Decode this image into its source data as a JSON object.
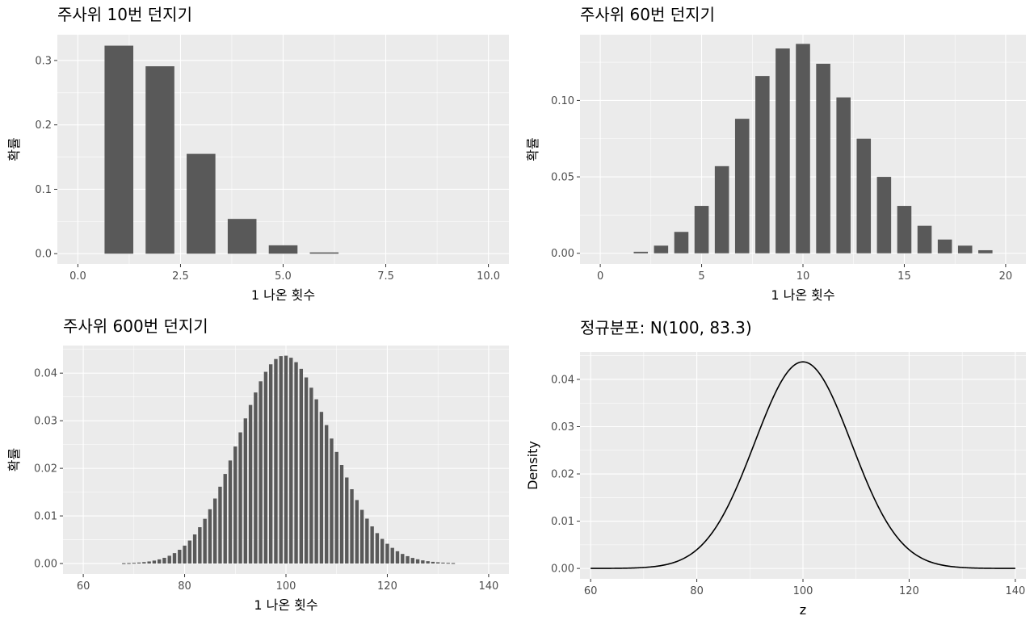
{
  "chart_data": [
    {
      "type": "bar",
      "title": "주사위 10번 던지기",
      "xlabel": "1 나온 횟수",
      "ylabel": "확률",
      "xlim": [
        -0.5,
        10.5
      ],
      "ylim": [
        -0.016,
        0.34
      ],
      "xticks": [
        0,
        2.5,
        5,
        7.5,
        10
      ],
      "xtick_labels": [
        "0.0",
        "2.5",
        "5.0",
        "7.5",
        "10.0"
      ],
      "yticks": [
        0,
        0.1,
        0.2,
        0.3
      ],
      "ytick_labels": [
        "0.0",
        "0.1",
        "0.2",
        "0.3"
      ],
      "bar_width": 0.7,
      "x": [
        0,
        1,
        2,
        3,
        4,
        5,
        6,
        7,
        8,
        9,
        10
      ],
      "values": [
        0.0,
        0.323,
        0.291,
        0.155,
        0.054,
        0.013,
        0.002,
        0.0,
        0.0,
        0.0,
        0.0
      ]
    },
    {
      "type": "bar",
      "title": "주사위 60번 던지기",
      "xlabel": "1 나온 횟수",
      "ylabel": "확률",
      "xlim": [
        -1,
        21
      ],
      "ylim": [
        -0.007,
        0.143
      ],
      "xticks": [
        0,
        5,
        10,
        15,
        20
      ],
      "xtick_labels": [
        "0",
        "5",
        "10",
        "15",
        "20"
      ],
      "yticks": [
        0,
        0.05,
        0.1
      ],
      "ytick_labels": [
        "0.00",
        "0.05",
        "0.10"
      ],
      "bar_width": 0.7,
      "x": [
        0,
        1,
        2,
        3,
        4,
        5,
        6,
        7,
        8,
        9,
        10,
        11,
        12,
        13,
        14,
        15,
        16,
        17,
        18,
        19,
        20
      ],
      "values": [
        0.0,
        0.0,
        0.001,
        0.005,
        0.014,
        0.031,
        0.057,
        0.088,
        0.116,
        0.134,
        0.137,
        0.124,
        0.102,
        0.075,
        0.05,
        0.031,
        0.018,
        0.009,
        0.005,
        0.002,
        0.0
      ]
    },
    {
      "type": "bar",
      "title": "주사위 600번 던지기",
      "xlabel": "1 나온 횟수",
      "ylabel": "확률",
      "xlim": [
        56,
        144
      ],
      "ylim": [
        -0.0022,
        0.0458
      ],
      "xticks": [
        60,
        80,
        100,
        120,
        140
      ],
      "xtick_labels": [
        "60",
        "80",
        "100",
        "120",
        "140"
      ],
      "yticks": [
        0,
        0.01,
        0.02,
        0.03,
        0.04
      ],
      "ytick_labels": [
        "0.00",
        "0.01",
        "0.02",
        "0.03",
        "0.04"
      ],
      "bar_width": 0.7,
      "x_start": 68,
      "x_end": 133,
      "distribution": {
        "name": "binomial",
        "n": 600,
        "p": 0.16667
      }
    },
    {
      "type": "line",
      "title": "정규분포: N(100, 83.3)",
      "xlabel": "z",
      "ylabel": "Density",
      "xlim": [
        58,
        142
      ],
      "ylim": [
        -0.0022,
        0.0458
      ],
      "xticks": [
        60,
        80,
        100,
        120,
        140
      ],
      "xtick_labels": [
        "60",
        "80",
        "100",
        "120",
        "140"
      ],
      "yticks": [
        0,
        0.01,
        0.02,
        0.03,
        0.04
      ],
      "ytick_labels": [
        "0.00",
        "0.01",
        "0.02",
        "0.03",
        "0.04"
      ],
      "distribution": {
        "name": "normal",
        "mean": 100,
        "variance": 83.3
      },
      "x_range": [
        60,
        140
      ]
    }
  ]
}
